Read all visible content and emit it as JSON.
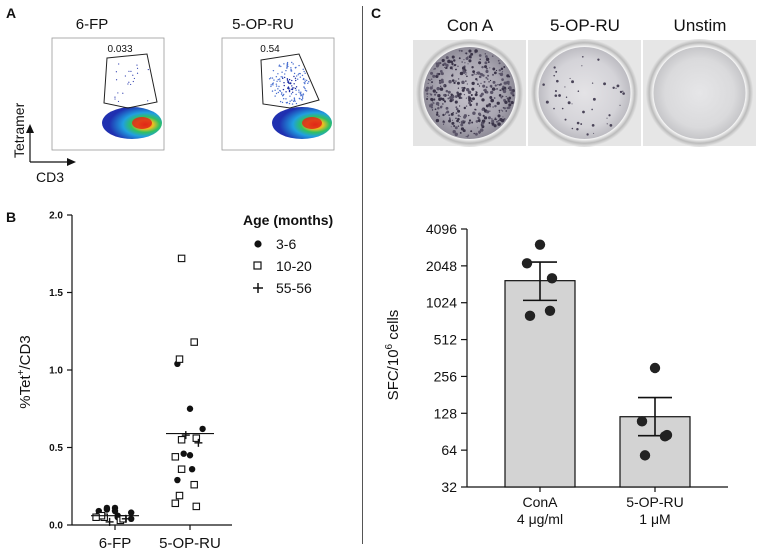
{
  "panel_a": {
    "letter": "A",
    "plots": [
      {
        "title": "6-FP",
        "gate_value": "0.033"
      },
      {
        "title": "5-OP-RU",
        "gate_value": "0.54"
      }
    ],
    "y_axis_label": "Tetramer",
    "x_axis_label": "CD3"
  },
  "panel_b": {
    "letter": "B",
    "legend_title": "Age (months)",
    "legend": [
      {
        "marker": "filled-circle",
        "label": "3-6"
      },
      {
        "marker": "open-square",
        "label": "10-20"
      },
      {
        "marker": "plus",
        "label": "55-56"
      }
    ]
  },
  "panel_c": {
    "letter": "C",
    "wells": [
      {
        "label": "Con A"
      },
      {
        "label": "5-OP-RU"
      },
      {
        "label": "Unstim"
      }
    ]
  },
  "colors": {
    "bar_fill": "#d3d3d3",
    "axis": "#111111",
    "well_rim": "#c8c8c8",
    "flow_high": "#e03020",
    "flow_low": "#2040c0"
  },
  "chart_data": [
    {
      "type": "scatter",
      "title": "",
      "ylabel": "%Tet+/CD3",
      "ylabel_main": "%Tet",
      "ylabel_sup": "+",
      "ylabel_rest": "/CD3",
      "xlabel": "",
      "categories": [
        "6-FP",
        "5-OP-RU"
      ],
      "ylim": [
        0,
        2.0
      ],
      "yticks": [
        "0.0",
        "0.5",
        "1.0",
        "1.5",
        "2.0"
      ],
      "ytick_values": [
        0,
        0.5,
        1.0,
        1.5,
        2.0
      ],
      "means": [
        0.06,
        0.59
      ],
      "series": [
        {
          "name": "3-6",
          "marker": "filled-circle",
          "points": [
            [
              0,
              0.09
            ],
            [
              0,
              0.11
            ],
            [
              0,
              0.08
            ],
            [
              0,
              0.1
            ],
            [
              0,
              0.06
            ],
            [
              0,
              0.07
            ],
            [
              0,
              0.09
            ],
            [
              0,
              0.04
            ],
            [
              0,
              0.11
            ],
            [
              0,
              0.05
            ],
            [
              1,
              1.04
            ],
            [
              1,
              0.75
            ],
            [
              1,
              0.62
            ],
            [
              1,
              0.46
            ],
            [
              1,
              0.36
            ],
            [
              1,
              0.29
            ],
            [
              1,
              0.45
            ]
          ]
        },
        {
          "name": "10-20",
          "marker": "open-square",
          "points": [
            [
              0,
              0.05
            ],
            [
              0,
              0.03
            ],
            [
              0,
              0.06
            ],
            [
              0,
              0.04
            ],
            [
              0,
              0.05
            ],
            [
              1,
              1.72
            ],
            [
              1,
              1.18
            ],
            [
              1,
              1.07
            ],
            [
              1,
              0.56
            ],
            [
              1,
              0.44
            ],
            [
              1,
              0.36
            ],
            [
              1,
              0.26
            ],
            [
              1,
              0.19
            ],
            [
              1,
              0.12
            ],
            [
              1,
              0.14
            ],
            [
              1,
              0.55
            ]
          ]
        },
        {
          "name": "55-56",
          "marker": "plus",
          "points": [
            [
              0,
              0.02
            ],
            [
              0,
              0.04
            ],
            [
              1,
              0.58
            ],
            [
              1,
              0.53
            ]
          ]
        }
      ]
    },
    {
      "type": "bar",
      "title": "",
      "ylabel": "SFC/10^6 cells",
      "ylabel_pre": "SFC/10",
      "ylabel_sup": "6",
      "ylabel_post": " cells",
      "yscale": "log2",
      "ylim": [
        32,
        4096
      ],
      "yticks": [
        "32",
        "64",
        "128",
        "256",
        "512",
        "1024",
        "2048",
        "4096"
      ],
      "ytick_values": [
        32,
        64,
        128,
        256,
        512,
        1024,
        2048,
        4096
      ],
      "categories": [
        "ConA",
        "5-OP-RU"
      ],
      "category_units": [
        "4 μg/ml",
        "1 μM"
      ],
      "values": [
        1550,
        120
      ],
      "error_upper": [
        2200,
        172
      ],
      "error_lower": [
        1070,
        84
      ],
      "points": [
        [
          3050,
          2150,
          1620,
          880,
          800
        ],
        [
          300,
          110,
          85,
          83,
          58
        ]
      ]
    }
  ]
}
